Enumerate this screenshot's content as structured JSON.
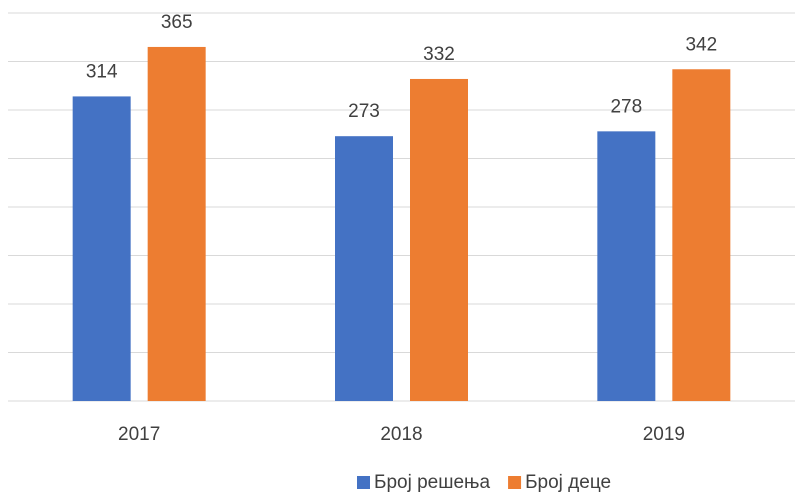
{
  "chart_data": {
    "type": "bar",
    "categories": [
      "2017",
      "2018",
      "2019"
    ],
    "series": [
      {
        "name": "Број решења",
        "color": "#4472c4",
        "values": [
          314,
          273,
          278
        ]
      },
      {
        "name": "Број деце",
        "color": "#ed7d31",
        "values": [
          365,
          332,
          342
        ]
      }
    ],
    "ylim": [
      0,
      400
    ],
    "yticks": [
      0,
      50,
      100,
      150,
      200,
      250,
      300,
      350,
      400
    ],
    "grid": true,
    "legend": "bottom"
  }
}
